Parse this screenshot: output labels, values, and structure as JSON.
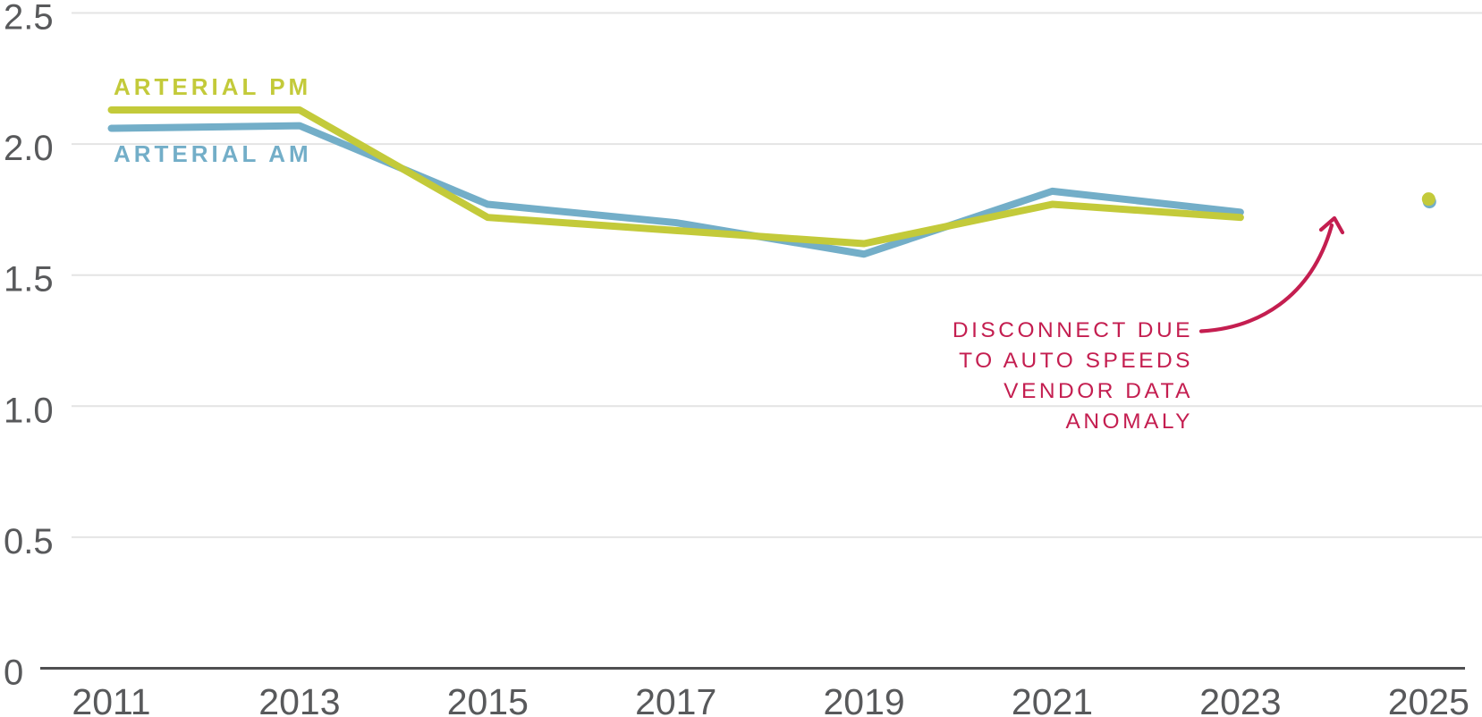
{
  "chart_data": {
    "type": "line",
    "title": "",
    "x": [
      2011,
      2013,
      2015,
      2017,
      2019,
      2021,
      2023,
      2025
    ],
    "xtick_labels": [
      "2011",
      "2013",
      "2015",
      "2017",
      "2019",
      "2021",
      "2023",
      "2025"
    ],
    "yticks": [
      0,
      0.5,
      1.0,
      1.5,
      2.0,
      2.5
    ],
    "ytick_labels": [
      "0",
      "0.5",
      "1.0",
      "1.5",
      "2.0",
      "2.5"
    ],
    "ylim": [
      0,
      2.5
    ],
    "grid": true,
    "legend_position": "inline-left",
    "series": [
      {
        "name": "ARTERIAL PM",
        "color": "#c3ca3a",
        "values": [
          2.13,
          2.13,
          1.72,
          1.67,
          1.62,
          1.77,
          1.72,
          1.79
        ],
        "segments": [
          [
            2011,
            2023
          ],
          [
            2025,
            2025
          ]
        ]
      },
      {
        "name": "ARTERIAL AM",
        "color": "#73aec8",
        "values": [
          2.06,
          2.07,
          1.77,
          1.7,
          1.58,
          1.82,
          1.74,
          1.78
        ],
        "segments": [
          [
            2011,
            2023
          ],
          [
            2025,
            2025
          ]
        ]
      }
    ],
    "annotation": {
      "lines": [
        "DISCONNECT DUE",
        "TO AUTO SPEEDS",
        "VENDOR DATA",
        "ANOMALY"
      ],
      "color": "#c41e50",
      "points_to": "gap between 2023 line end and 2025 dot"
    }
  },
  "colors": {
    "background": "#ffffff",
    "axis_text": "#58595b",
    "gridline": "#e4e4e4",
    "axis_line": "#4f4f51"
  }
}
